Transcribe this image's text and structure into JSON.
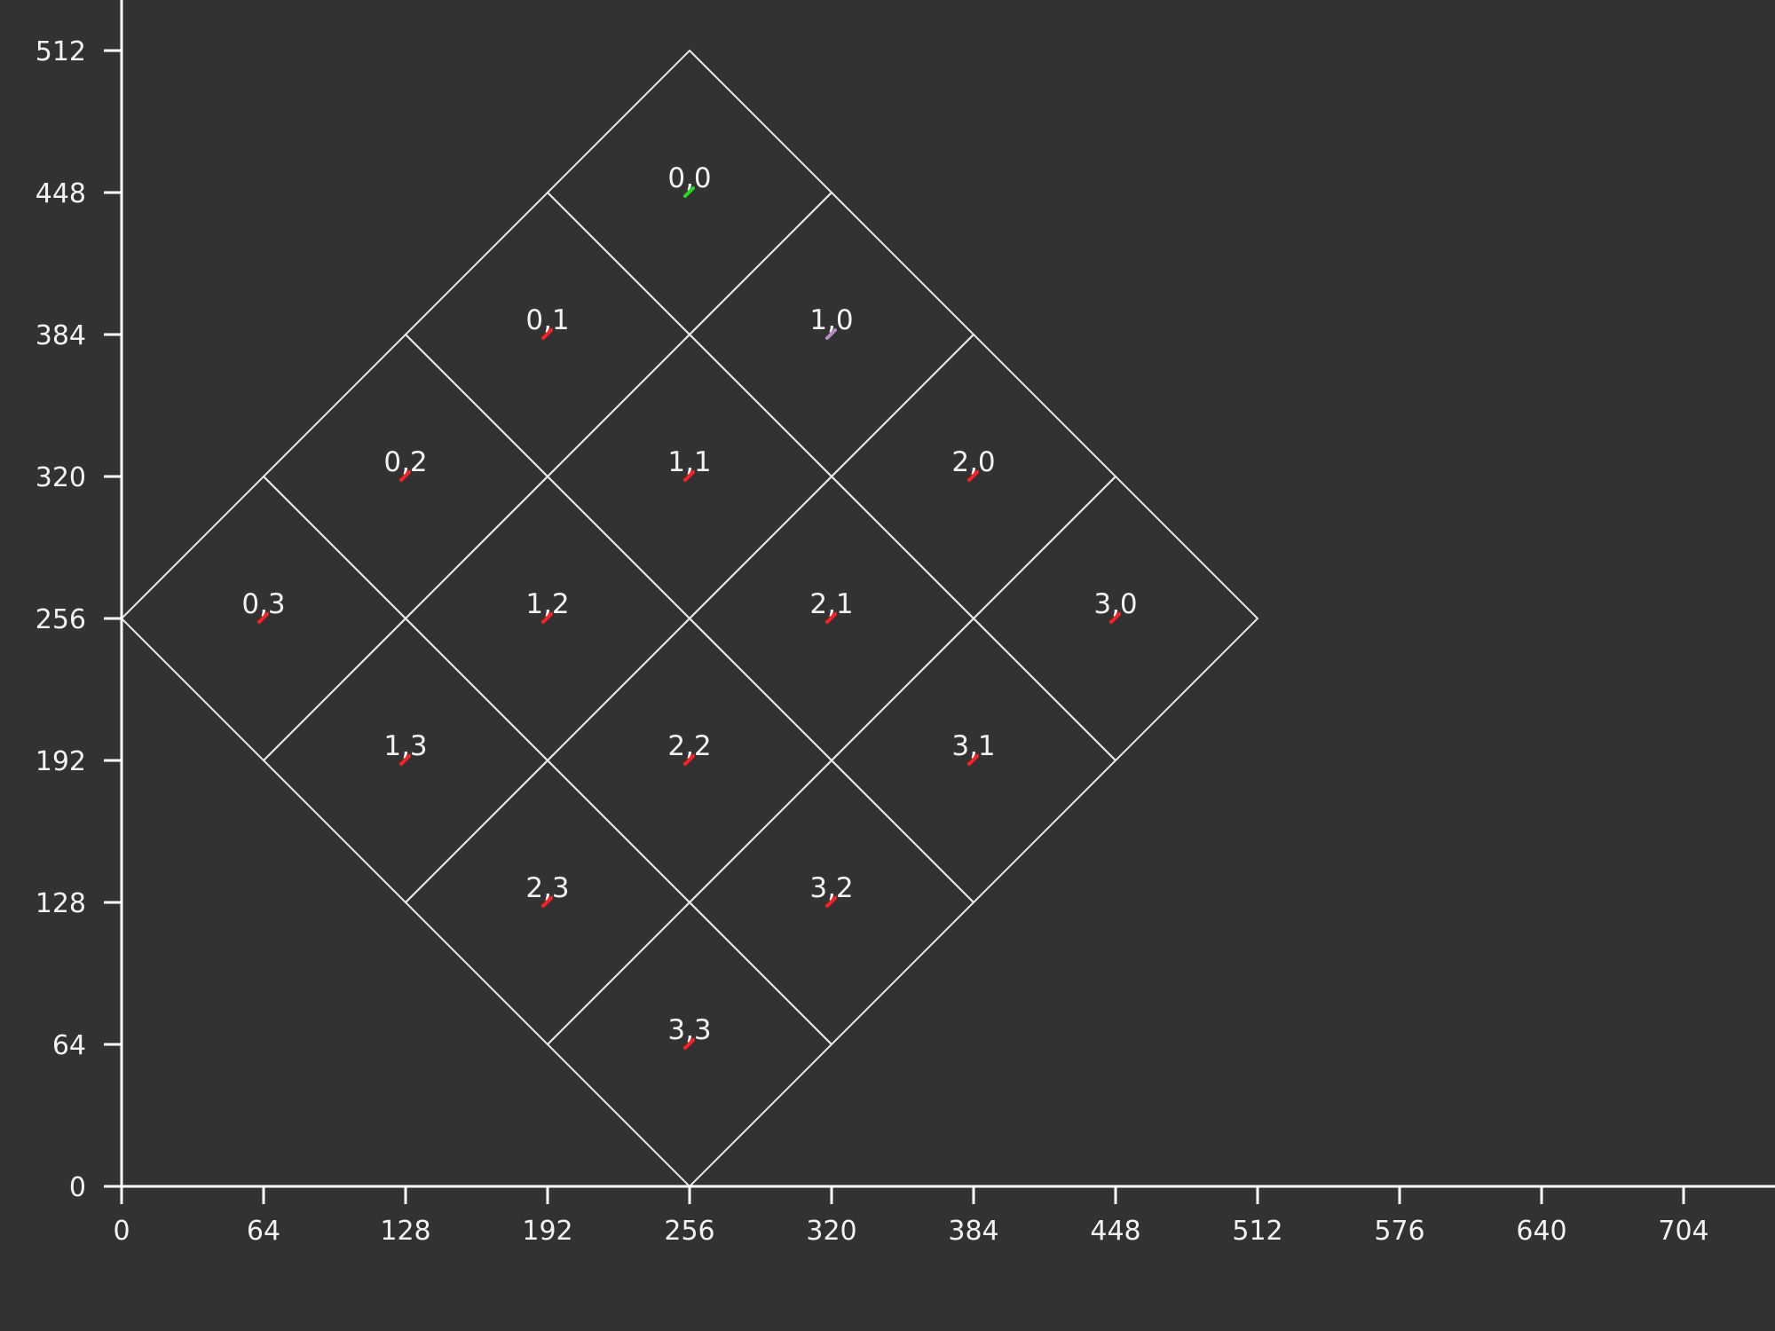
{
  "colors": {
    "background": "#323232",
    "axis": "#ffffff",
    "grid_line": "#e9e9e9",
    "text": "#f2f2f2",
    "marker_default": "#ff2020",
    "marker_origin": "#22dd22",
    "marker_special": "#b58cc8"
  },
  "chart_data": {
    "type": "isometric-grid",
    "grid_size": 4,
    "tile_half_width": 64,
    "tile_half_height": 64,
    "origin_tile_top": [
      256,
      512
    ],
    "x_axis": {
      "range": [
        0,
        736
      ],
      "ticks": [
        0,
        64,
        128,
        192,
        256,
        320,
        384,
        448,
        512,
        576,
        640,
        704
      ]
    },
    "y_axis": {
      "range": [
        0,
        512
      ],
      "ticks": [
        0,
        64,
        128,
        192,
        256,
        320,
        384,
        448,
        512
      ]
    },
    "tiles": [
      {
        "label": "0,0",
        "col": 0,
        "row": 0,
        "marker": "marker_origin"
      },
      {
        "label": "0,1",
        "col": 0,
        "row": 1,
        "marker": "marker_default"
      },
      {
        "label": "0,2",
        "col": 0,
        "row": 2,
        "marker": "marker_default"
      },
      {
        "label": "0,3",
        "col": 0,
        "row": 3,
        "marker": "marker_default"
      },
      {
        "label": "1,0",
        "col": 1,
        "row": 0,
        "marker": "marker_special"
      },
      {
        "label": "1,1",
        "col": 1,
        "row": 1,
        "marker": "marker_default"
      },
      {
        "label": "1,2",
        "col": 1,
        "row": 2,
        "marker": "marker_default"
      },
      {
        "label": "1,3",
        "col": 1,
        "row": 3,
        "marker": "marker_default"
      },
      {
        "label": "2,0",
        "col": 2,
        "row": 0,
        "marker": "marker_default"
      },
      {
        "label": "2,1",
        "col": 2,
        "row": 1,
        "marker": "marker_default"
      },
      {
        "label": "2,2",
        "col": 2,
        "row": 2,
        "marker": "marker_default"
      },
      {
        "label": "2,3",
        "col": 2,
        "row": 3,
        "marker": "marker_default"
      },
      {
        "label": "3,0",
        "col": 3,
        "row": 0,
        "marker": "marker_default"
      },
      {
        "label": "3,1",
        "col": 3,
        "row": 1,
        "marker": "marker_default"
      },
      {
        "label": "3,2",
        "col": 3,
        "row": 2,
        "marker": "marker_default"
      },
      {
        "label": "3,3",
        "col": 3,
        "row": 3,
        "marker": "marker_default"
      }
    ]
  }
}
